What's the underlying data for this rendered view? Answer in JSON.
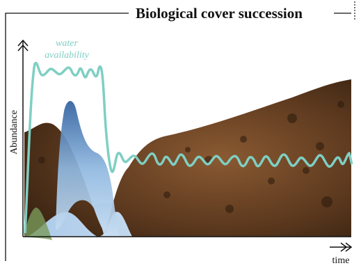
{
  "header": {
    "title": "Biological cover succession"
  },
  "labels": {
    "water": [
      "water",
      "availability"
    ],
    "y_axis": "Abundance",
    "x_axis": "time"
  }
}
